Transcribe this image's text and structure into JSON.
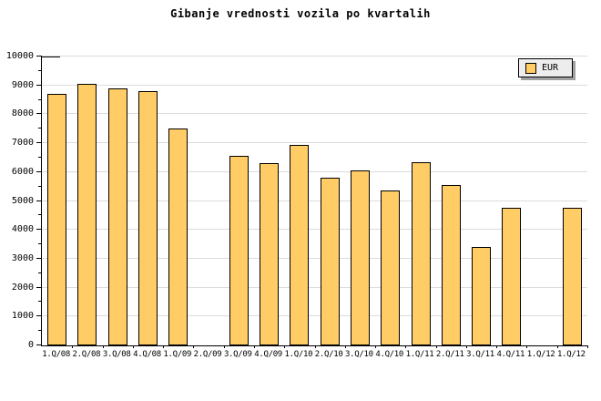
{
  "title": "Gibanje vrednosti vozila po kvartalih",
  "colors": {
    "bar_fill": "#FFCC66",
    "bar_border": "#000000",
    "gridline": "#DCDCDC",
    "legend_background": "#EDEDED",
    "legend_shadow": "#A0A0A0",
    "background": "#FFFFFF"
  },
  "legend": [
    {
      "label": "EUR",
      "swatch_color": "#FFCC66"
    }
  ],
  "chart_data": {
    "type": "bar",
    "title": "Gibanje vrednosti vozila po kvartalih",
    "categories": [
      "1.Q/08",
      "2.Q/08",
      "3.Q/08",
      "4.Q/08",
      "1.Q/09",
      "2.Q/09",
      "3.Q/09",
      "4.Q/09",
      "1.Q/10",
      "2.Q/10",
      "3.Q/10",
      "4.Q/10",
      "1.Q/11",
      "2.Q/11",
      "3.Q/11",
      "4.Q/11",
      "1.Q/12",
      "1.Q/12"
    ],
    "series": [
      {
        "name": "EUR",
        "values": [
          8700,
          9050,
          8900,
          8800,
          7500,
          null,
          6550,
          6300,
          6950,
          5800,
          6050,
          5350,
          6350,
          5550,
          3400,
          4750,
          null,
          4750
        ]
      }
    ],
    "xlabel": "",
    "ylabel": "",
    "ylim": [
      0,
      10000
    ],
    "ytick_step": 1000,
    "ytick_minor_step": 500,
    "ytick_labels": [
      "0",
      "1000",
      "2000",
      "3000",
      "4000",
      "5000",
      "6000",
      "7000",
      "8000",
      "9000",
      "10000"
    ],
    "grid": true,
    "legend_position": "top-right"
  }
}
